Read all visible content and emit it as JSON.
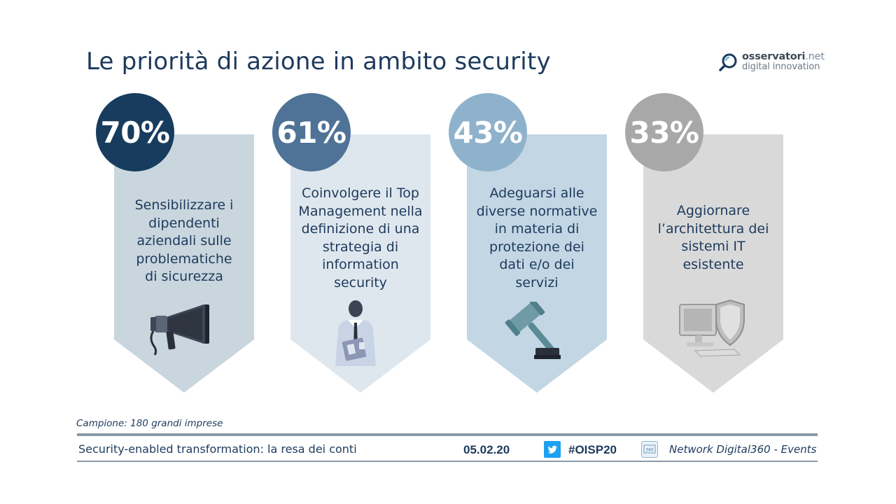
{
  "title": "Le priorità di azione in ambito security",
  "logo": {
    "name_main": "osservatori",
    "name_suffix": ".net",
    "tagline": "digital innovation"
  },
  "cards": [
    {
      "percent": "70%",
      "lines": [
        "Sensibilizzare i",
        "dipendenti",
        "aziendali sulle",
        "problematiche",
        "di sicurezza"
      ],
      "icon": "megaphone-icon",
      "circle_color": "#173c5e",
      "panel_color": "#c9d6de"
    },
    {
      "percent": "61%",
      "lines": [
        "Coinvolgere il Top",
        "Management nella",
        "definizione di una",
        "strategia di",
        "information",
        "security"
      ],
      "icon": "businessman-icon",
      "circle_color": "#4f7396",
      "panel_color": "#dfe7ee"
    },
    {
      "percent": "43%",
      "lines": [
        "Adeguarsi alle",
        "diverse normative",
        "in materia di",
        "protezione dei",
        "dati e/o dei",
        "servizi"
      ],
      "icon": "gavel-icon",
      "circle_color": "#8fb2cc",
      "panel_color": "#c3d6e4"
    },
    {
      "percent": "33%",
      "lines": [
        "Aggiornare",
        "l’architettura dei",
        "sistemi IT",
        "esistente"
      ],
      "icon": "shield-computer-icon",
      "circle_color": "#a8a8a8",
      "panel_color": "#d9d9d9"
    }
  ],
  "sample": "Campione: 180 grandi imprese",
  "footer": {
    "event": "Security-enabled transformation: la resa dei conti",
    "date": "05.02.20",
    "hashtag": "#OISP20",
    "network": "Network Digital360 - Events"
  }
}
